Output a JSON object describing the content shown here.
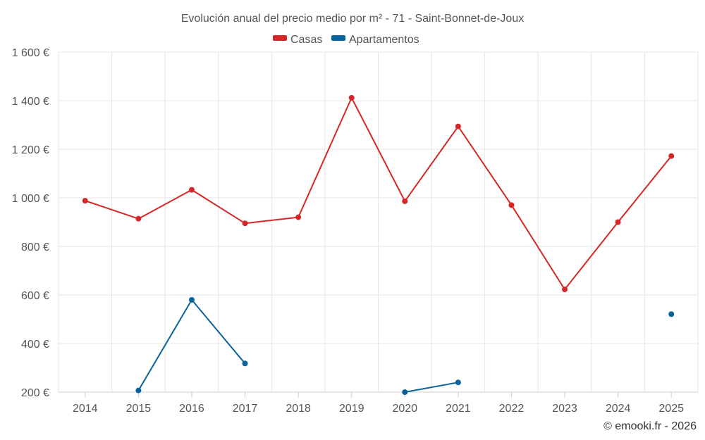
{
  "chart_data": {
    "type": "line",
    "title": "Evolución anual del precio medio por m² - 71 - Saint-Bonnet-de-Joux",
    "categories": [
      "2014",
      "2015",
      "2016",
      "2017",
      "2018",
      "2019",
      "2020",
      "2021",
      "2022",
      "2023",
      "2024",
      "2025"
    ],
    "ylim": [
      200,
      1600
    ],
    "yticks": [
      200,
      400,
      600,
      800,
      1000,
      1200,
      1400,
      1600
    ],
    "ytick_labels": [
      "200 €",
      "400 €",
      "600 €",
      "800 €",
      "1 000 €",
      "1 200 €",
      "1 400 €",
      "1 600 €"
    ],
    "grid": true,
    "legend_position": "top-center",
    "series": [
      {
        "name": "Casas",
        "color": "#d62728",
        "values": [
          988,
          914,
          1033,
          895,
          920,
          1412,
          986,
          1294,
          970,
          623,
          900,
          1172
        ]
      },
      {
        "name": "Apartamentos",
        "color": "#0b6399",
        "values": [
          null,
          207,
          580,
          318,
          null,
          null,
          200,
          240,
          null,
          null,
          null,
          521
        ]
      }
    ],
    "credit": "© emooki.fr - 2026"
  }
}
